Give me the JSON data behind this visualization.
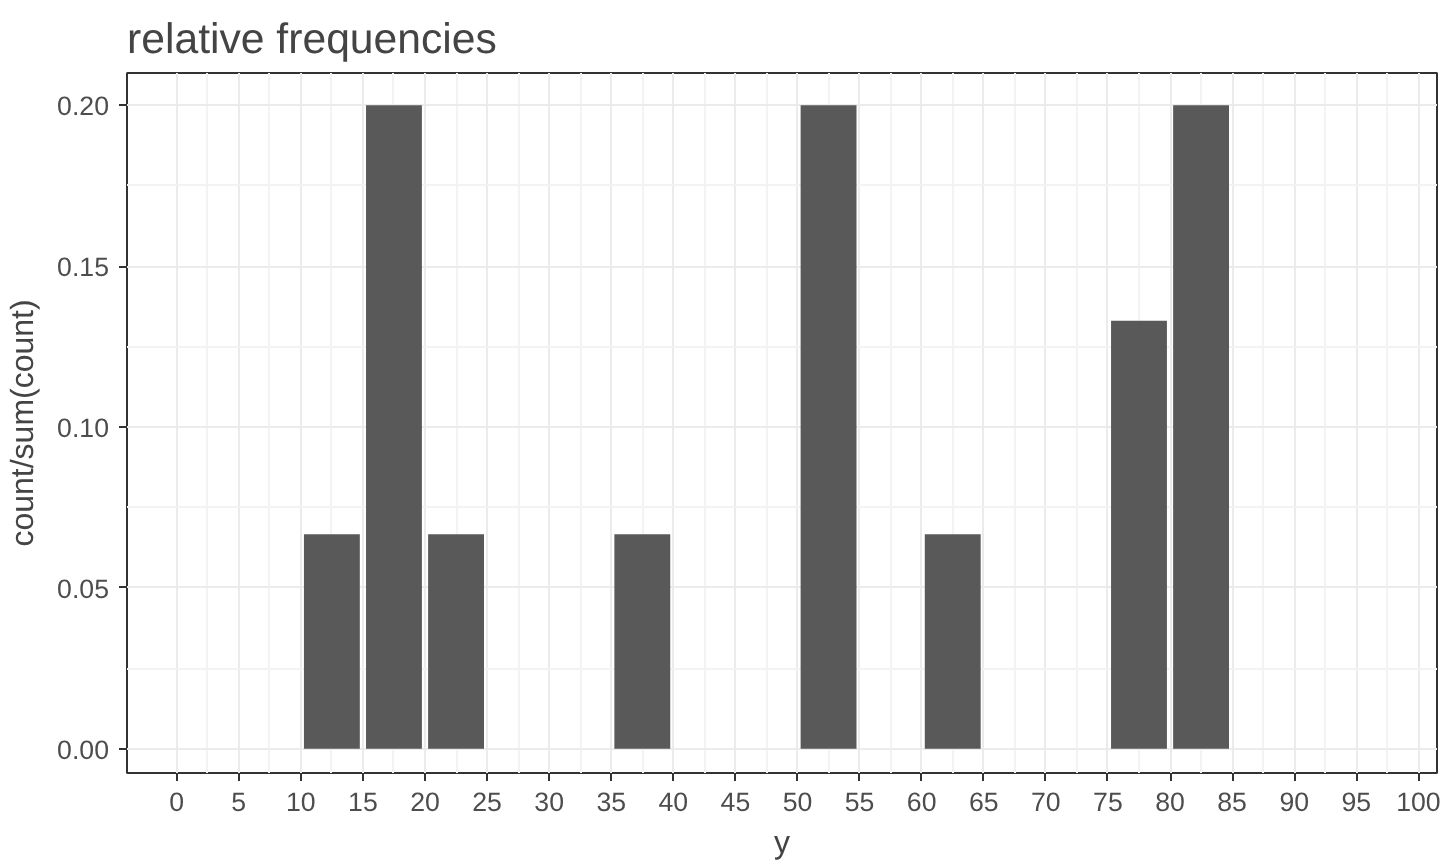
{
  "chart_data": {
    "type": "histogram",
    "title": "relative frequencies",
    "xlabel": "y",
    "ylabel": "count/sum(count)",
    "bins": [
      10,
      15,
      20,
      25,
      30,
      35,
      40,
      45,
      50,
      55,
      60,
      65,
      70,
      75,
      80,
      85
    ],
    "values": [
      0.0667,
      0.2,
      0.0667,
      0,
      0,
      0.0667,
      0,
      0,
      0.2,
      0,
      0.0667,
      0,
      0,
      0.133,
      0.2
    ],
    "color": "#595959",
    "xlim": [
      -4,
      101.5
    ],
    "xticks": [
      0,
      5,
      10,
      15,
      20,
      25,
      30,
      35,
      40,
      45,
      50,
      55,
      60,
      65,
      70,
      75,
      80,
      85,
      90,
      95,
      100
    ],
    "ylim": [
      -0.0075,
      0.21
    ],
    "yticks": [
      {
        "value": 0,
        "label": "0.00"
      },
      {
        "value": 0.05,
        "label": "0.05"
      },
      {
        "value": 0.1,
        "label": "0.10"
      },
      {
        "value": 0.15,
        "label": "0.15"
      },
      {
        "value": 0.2,
        "label": "0.20"
      }
    ],
    "grid": true
  }
}
